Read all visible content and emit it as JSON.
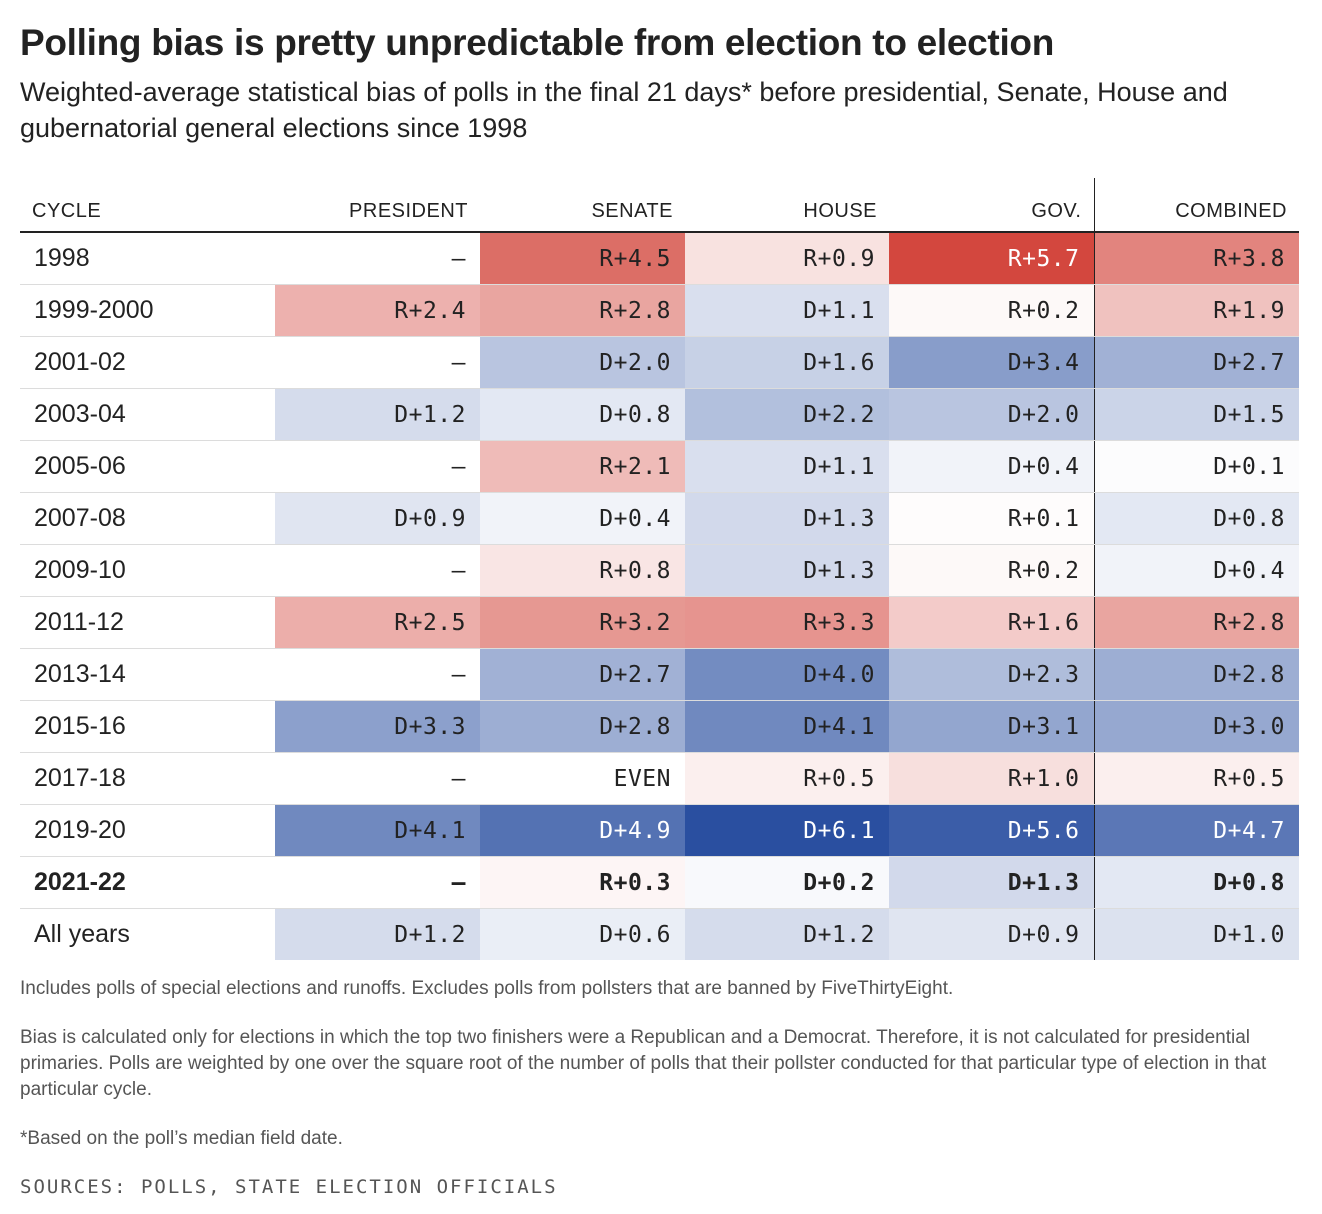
{
  "title": "Polling bias is pretty unpredictable from election to election",
  "subtitle": "Weighted-average statistical bias of polls in the final 21 days* before presidential, Senate, House and gubernatorial general elections since 1998",
  "notes": [
    "Includes polls of special elections and runoffs. Excludes polls from pollsters that are banned by FiveThirtyEight.",
    "Bias is calculated only for elections in which the top two finishers were a Republican and a Democrat. Therefore, it is not calculated for presidential primaries. Polls are weighted by one over the square root of the number of polls that their pollster conducted for that particular type of election in that particular cycle.",
    "*Based on the poll’s median field date."
  ],
  "sources": "SOURCES: POLLS, STATE ELECTION OFFICIALS",
  "colors": {
    "republican": "#d03a30",
    "democrat": "#2a4fa0",
    "neutral": "#ffffff",
    "text": "#222222",
    "text_on_dark": "#ffffff"
  },
  "chart_data": {
    "type": "table",
    "columns": [
      "CYCLE",
      "PRESIDENT",
      "SENATE",
      "HOUSE",
      "GOV.",
      "COMBINED"
    ],
    "rows": [
      {
        "cycle": "1998",
        "cells": [
          "–",
          "R+4.5",
          "R+0.9",
          "R+5.7",
          "R+3.8"
        ],
        "bias": [
          null,
          4.5,
          0.9,
          5.7,
          3.8
        ]
      },
      {
        "cycle": "1999-2000",
        "cells": [
          "R+2.4",
          "R+2.8",
          "D+1.1",
          "R+0.2",
          "R+1.9"
        ],
        "bias": [
          2.4,
          2.8,
          -1.1,
          0.2,
          1.9
        ]
      },
      {
        "cycle": "2001-02",
        "cells": [
          "–",
          "D+2.0",
          "D+1.6",
          "D+3.4",
          "D+2.7"
        ],
        "bias": [
          null,
          -2.0,
          -1.6,
          -3.4,
          -2.7
        ]
      },
      {
        "cycle": "2003-04",
        "cells": [
          "D+1.2",
          "D+0.8",
          "D+2.2",
          "D+2.0",
          "D+1.5"
        ],
        "bias": [
          -1.2,
          -0.8,
          -2.2,
          -2.0,
          -1.5
        ]
      },
      {
        "cycle": "2005-06",
        "cells": [
          "–",
          "R+2.1",
          "D+1.1",
          "D+0.4",
          "D+0.1"
        ],
        "bias": [
          null,
          2.1,
          -1.1,
          -0.4,
          -0.1
        ]
      },
      {
        "cycle": "2007-08",
        "cells": [
          "D+0.9",
          "D+0.4",
          "D+1.3",
          "R+0.1",
          "D+0.8"
        ],
        "bias": [
          -0.9,
          -0.4,
          -1.3,
          0.1,
          -0.8
        ]
      },
      {
        "cycle": "2009-10",
        "cells": [
          "–",
          "R+0.8",
          "D+1.3",
          "R+0.2",
          "D+0.4"
        ],
        "bias": [
          null,
          0.8,
          -1.3,
          0.2,
          -0.4
        ]
      },
      {
        "cycle": "2011-12",
        "cells": [
          "R+2.5",
          "R+3.2",
          "R+3.3",
          "R+1.6",
          "R+2.8"
        ],
        "bias": [
          2.5,
          3.2,
          3.3,
          1.6,
          2.8
        ]
      },
      {
        "cycle": "2013-14",
        "cells": [
          "–",
          "D+2.7",
          "D+4.0",
          "D+2.3",
          "D+2.8"
        ],
        "bias": [
          null,
          -2.7,
          -4.0,
          -2.3,
          -2.8
        ]
      },
      {
        "cycle": "2015-16",
        "cells": [
          "D+3.3",
          "D+2.8",
          "D+4.1",
          "D+3.1",
          "D+3.0"
        ],
        "bias": [
          -3.3,
          -2.8,
          -4.1,
          -3.1,
          -3.0
        ]
      },
      {
        "cycle": "2017-18",
        "cells": [
          "–",
          "EVEN",
          "R+0.5",
          "R+1.0",
          "R+0.5"
        ],
        "bias": [
          null,
          0,
          0.5,
          1.0,
          0.5
        ]
      },
      {
        "cycle": "2019-20",
        "cells": [
          "D+4.1",
          "D+4.9",
          "D+6.1",
          "D+5.6",
          "D+4.7"
        ],
        "bias": [
          -4.1,
          -4.9,
          -6.1,
          -5.6,
          -4.7
        ]
      },
      {
        "cycle": "2021-22",
        "cells": [
          "–",
          "R+0.3",
          "D+0.2",
          "D+1.3",
          "D+0.8"
        ],
        "bias": [
          null,
          0.3,
          -0.2,
          -1.3,
          -0.8
        ],
        "bold": true
      },
      {
        "cycle": "All years",
        "cells": [
          "D+1.2",
          "D+0.6",
          "D+1.2",
          "D+0.9",
          "D+1.0"
        ],
        "bias": [
          -1.2,
          -0.6,
          -1.2,
          -0.9,
          -1.0
        ]
      }
    ]
  }
}
